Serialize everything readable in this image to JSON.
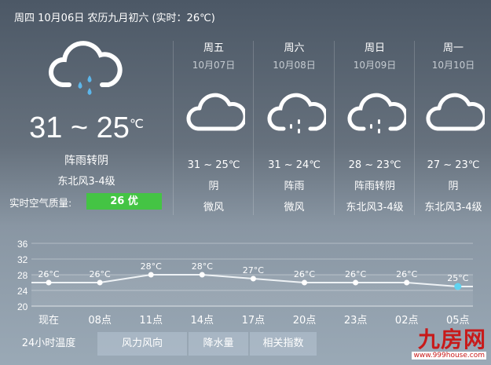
{
  "header": {
    "title": "周四 10月06日 农历九月初六 (实时：26℃)"
  },
  "today": {
    "icon": "cloud-rain-icon",
    "high": "31",
    "low": "25",
    "unit": "℃",
    "condition": "阵雨转阴",
    "wind": "东北风3-4级",
    "aq_label": "实时空气质量:",
    "aq_value": "26 优",
    "aq_color": "#44c444"
  },
  "forecast": [
    {
      "day": "周五",
      "date": "10月07日",
      "icon": "cloud-icon",
      "temp": "31 ~ 25℃",
      "condition": "阴",
      "wind": "微风"
    },
    {
      "day": "周六",
      "date": "10月08日",
      "icon": "cloud-rain-icon",
      "temp": "31 ~ 24℃",
      "condition": "阵雨",
      "wind": "微风"
    },
    {
      "day": "周日",
      "date": "10月09日",
      "icon": "cloud-rain-icon",
      "temp": "28 ~ 23℃",
      "condition": "阵雨转阴",
      "wind": "东北风3-4级"
    },
    {
      "day": "周一",
      "date": "10月10日",
      "icon": "cloud-icon",
      "temp": "27 ~ 23℃",
      "condition": "阴",
      "wind": "东北风3-4级"
    }
  ],
  "chart_data": {
    "type": "line",
    "categories": [
      "现在",
      "08点",
      "11点",
      "14点",
      "17点",
      "20点",
      "23点",
      "02点",
      "05点"
    ],
    "values": [
      26,
      26,
      28,
      28,
      27,
      26,
      26,
      26,
      25
    ],
    "labels": [
      "26°C",
      "26°C",
      "28°C",
      "28°C",
      "27°C",
      "26°C",
      "26°C",
      "26°C",
      "25°C"
    ],
    "yticks": [
      36,
      32,
      28,
      24,
      20
    ],
    "ylim": [
      20,
      36
    ],
    "grid": true,
    "highlight_color": "#5fd3f0"
  },
  "tabs": [
    "24小时温度",
    "风力风向",
    "降水量",
    "相关指数"
  ],
  "logo": {
    "text": "九房网",
    "url_text": "www.999house.com"
  }
}
